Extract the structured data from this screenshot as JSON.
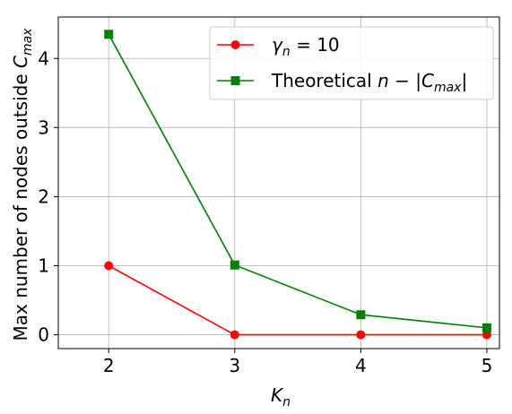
{
  "chart_data": {
    "type": "line",
    "title": "",
    "xlabel": "K_n",
    "ylabel": "Max number of nodes outside C_max",
    "x": [
      2,
      3,
      4,
      5
    ],
    "xlim": [
      1.6,
      5.1
    ],
    "ylim": [
      -0.2,
      4.6
    ],
    "xticks": [
      2,
      3,
      4,
      5
    ],
    "yticks": [
      0,
      1,
      2,
      3,
      4
    ],
    "grid": true,
    "legend_position": "upper right",
    "series": [
      {
        "name": "γ_n = 10",
        "values": [
          1,
          0,
          0,
          0
        ],
        "color": "#ff0000",
        "marker": "circle"
      },
      {
        "name": "Theoretical n − |C_max|",
        "values": [
          4.35,
          1.01,
          0.29,
          0.1
        ],
        "color": "#008000",
        "marker": "square"
      }
    ]
  }
}
